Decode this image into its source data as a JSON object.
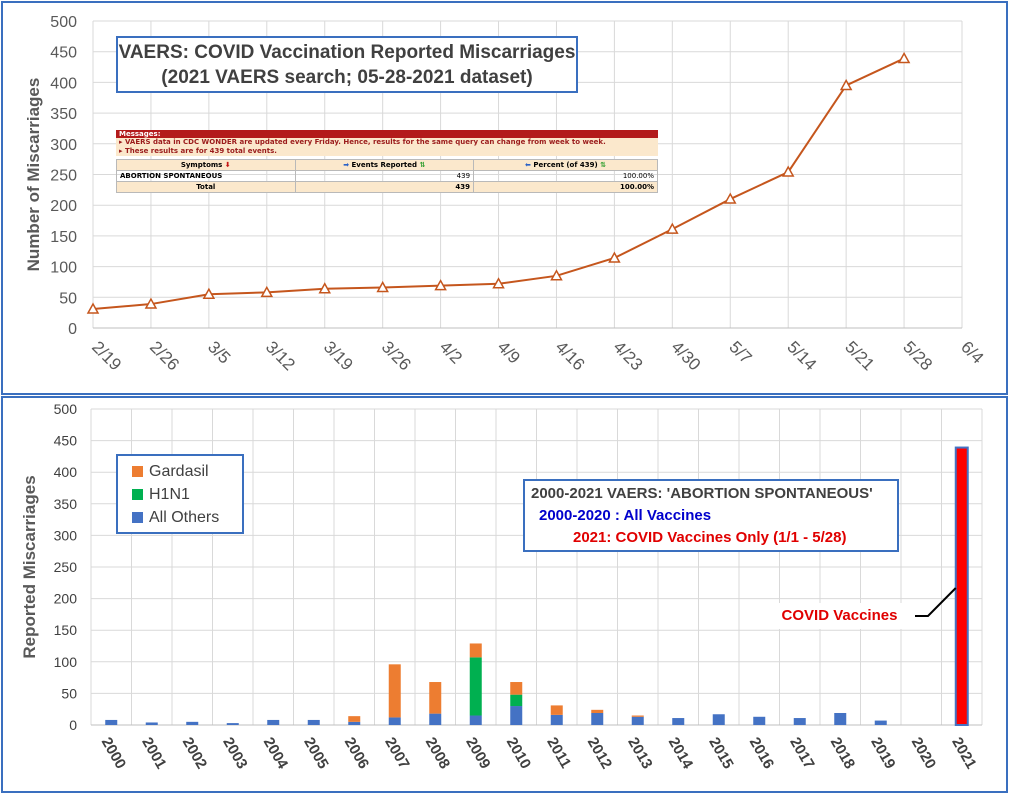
{
  "top_chart": {
    "title_line1": "VAERS: COVID Vaccination Reported Miscarriages",
    "title_line2": "(2021 VAERS search; 05-28-2021 dataset)",
    "messages": {
      "header": "Messages:",
      "lines": [
        "VAERS data in CDC WONDER are updated every Friday. Hence, results for the same query can change from week to week.",
        "These results are for 439 total events."
      ],
      "table": {
        "headers": [
          "Symptoms",
          "Events Reported",
          "Percent (of 439)"
        ],
        "rows": [
          [
            "ABORTION SPONTANEOUS",
            "439",
            "100.00%"
          ],
          [
            "Total",
            "439",
            "100.00%"
          ]
        ]
      }
    }
  },
  "bottom_chart": {
    "legend": [
      "Gardasil",
      "H1N1",
      "All Others"
    ],
    "info_lines": [
      "2000-2021 VAERS: 'ABORTION SPONTANEOUS'",
      "2000-2020 : All Vaccines",
      "2021:  COVID Vaccines Only (1/1 - 5/28)"
    ],
    "covid_label": "COVID Vaccines"
  },
  "colors": {
    "line": "#c5561d",
    "gardasil": "#ed7d31",
    "h1n1": "#00b050",
    "others": "#4472c4",
    "covid": "#ff0000",
    "border": "#3a6fbf"
  },
  "chart_data": [
    {
      "type": "line",
      "title": "VAERS: COVID Vaccination Reported Miscarriages",
      "ylabel": "Number of Miscarriages",
      "x": [
        "2/19",
        "2/26",
        "3/5",
        "3/12",
        "3/19",
        "3/26",
        "4/2",
        "4/9",
        "4/16",
        "4/23",
        "4/30",
        "5/7",
        "5/14",
        "5/21",
        "5/28"
      ],
      "x_ticks": [
        "2/19",
        "2/26",
        "3/5",
        "3/12",
        "3/19",
        "3/26",
        "4/2",
        "4/9",
        "4/16",
        "4/23",
        "4/30",
        "5/7",
        "5/14",
        "5/21",
        "5/28",
        "6/4"
      ],
      "values": [
        31,
        39,
        55,
        58,
        64,
        66,
        69,
        72,
        85,
        114,
        161,
        210,
        254,
        395,
        439
      ],
      "ylim": [
        0,
        500
      ],
      "yticks": [
        0,
        50,
        100,
        150,
        200,
        250,
        300,
        350,
        400,
        450,
        500
      ],
      "grid": true,
      "marker": "triangle"
    },
    {
      "type": "bar",
      "stacked": true,
      "ylabel": "Reported Miscarriages",
      "categories": [
        "2000",
        "2001",
        "2002",
        "2003",
        "2004",
        "2005",
        "2006",
        "2007",
        "2008",
        "2009",
        "2010",
        "2011",
        "2012",
        "2013",
        "2014",
        "2015",
        "2016",
        "2017",
        "2018",
        "2019",
        "2020",
        "2021"
      ],
      "series": [
        {
          "name": "All Others",
          "values": [
            8,
            4,
            5,
            3,
            8,
            8,
            5,
            12,
            18,
            15,
            30,
            16,
            19,
            13,
            11,
            17,
            13,
            11,
            19,
            7,
            0,
            0
          ]
        },
        {
          "name": "H1N1",
          "values": [
            0,
            0,
            0,
            0,
            0,
            0,
            0,
            0,
            0,
            92,
            18,
            0,
            0,
            0,
            0,
            0,
            0,
            0,
            0,
            0,
            0,
            0
          ]
        },
        {
          "name": "Gardasil",
          "values": [
            0,
            0,
            0,
            0,
            0,
            0,
            9,
            84,
            50,
            22,
            20,
            15,
            5,
            2,
            0,
            0,
            0,
            0,
            0,
            0,
            0,
            0
          ]
        },
        {
          "name": "COVID Vaccines",
          "values": [
            0,
            0,
            0,
            0,
            0,
            0,
            0,
            0,
            0,
            0,
            0,
            0,
            0,
            0,
            0,
            0,
            0,
            0,
            0,
            0,
            0,
            439
          ]
        }
      ],
      "ylim": [
        0,
        500
      ],
      "yticks": [
        0,
        50,
        100,
        150,
        200,
        250,
        300,
        350,
        400,
        450,
        500
      ],
      "grid": true,
      "legend_position": "top-left"
    }
  ]
}
